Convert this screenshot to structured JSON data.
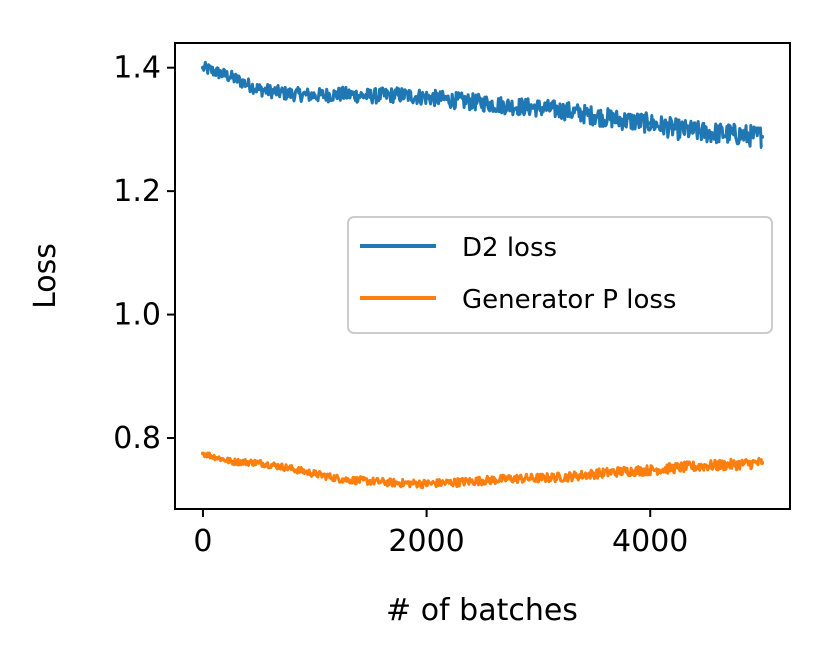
{
  "chart_data": {
    "type": "line",
    "title": "",
    "xlabel": "# of batches",
    "ylabel": "Loss",
    "xlim": [
      -250,
      5250
    ],
    "ylim": [
      0.685,
      1.44
    ],
    "xticks": [
      0,
      2000,
      4000
    ],
    "xtick_labels": [
      "0",
      "2000",
      "4000"
    ],
    "yticks": [
      0.8,
      1.0,
      1.2,
      1.4
    ],
    "ytick_labels": [
      "0.8",
      "1.0",
      "1.2",
      "1.4"
    ],
    "grid": false,
    "legend_position": "center-right",
    "x": [
      0,
      250,
      500,
      750,
      1000,
      1250,
      1500,
      1750,
      2000,
      2250,
      2500,
      2750,
      3000,
      3250,
      3500,
      3750,
      4000,
      4250,
      4500,
      4750,
      5000
    ],
    "series": [
      {
        "name": "D2 loss",
        "color": "#1f77b4",
        "noise": 0.01,
        "values": [
          1.4,
          1.385,
          1.365,
          1.358,
          1.355,
          1.357,
          1.354,
          1.356,
          1.352,
          1.347,
          1.343,
          1.338,
          1.335,
          1.33,
          1.322,
          1.315,
          1.31,
          1.3,
          1.295,
          1.292,
          1.288
        ]
      },
      {
        "name": "Generator P loss",
        "color": "#ff7f0e",
        "noise": 0.005,
        "values": [
          0.775,
          0.762,
          0.76,
          0.752,
          0.742,
          0.733,
          0.73,
          0.727,
          0.726,
          0.728,
          0.731,
          0.734,
          0.735,
          0.737,
          0.742,
          0.746,
          0.748,
          0.752,
          0.755,
          0.757,
          0.76
        ]
      }
    ]
  }
}
